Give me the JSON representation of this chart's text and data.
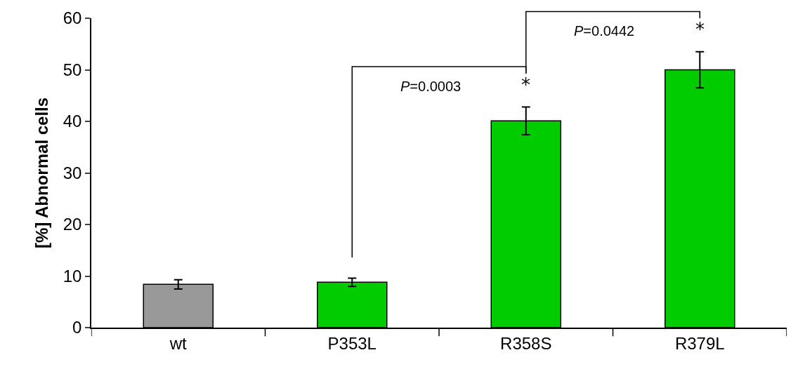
{
  "chart_data": {
    "type": "bar",
    "ylabel": "[%] Abnormal cells",
    "categories": [
      "wt",
      "P353L",
      "R358S",
      "R379L"
    ],
    "values": [
      8.4,
      8.8,
      40.1,
      50.0
    ],
    "colors": [
      "#999999",
      "#00cc00",
      "#00cc00",
      "#00cc00"
    ],
    "errors": [
      0.9,
      0.8,
      2.7,
      3.5
    ],
    "ylim": [
      0,
      60
    ],
    "yticks": [
      0,
      10,
      20,
      30,
      40,
      50,
      60
    ],
    "legend": false,
    "annotations": [
      "*",
      "*",
      "P=0.0003",
      "P=0.0442"
    ]
  }
}
